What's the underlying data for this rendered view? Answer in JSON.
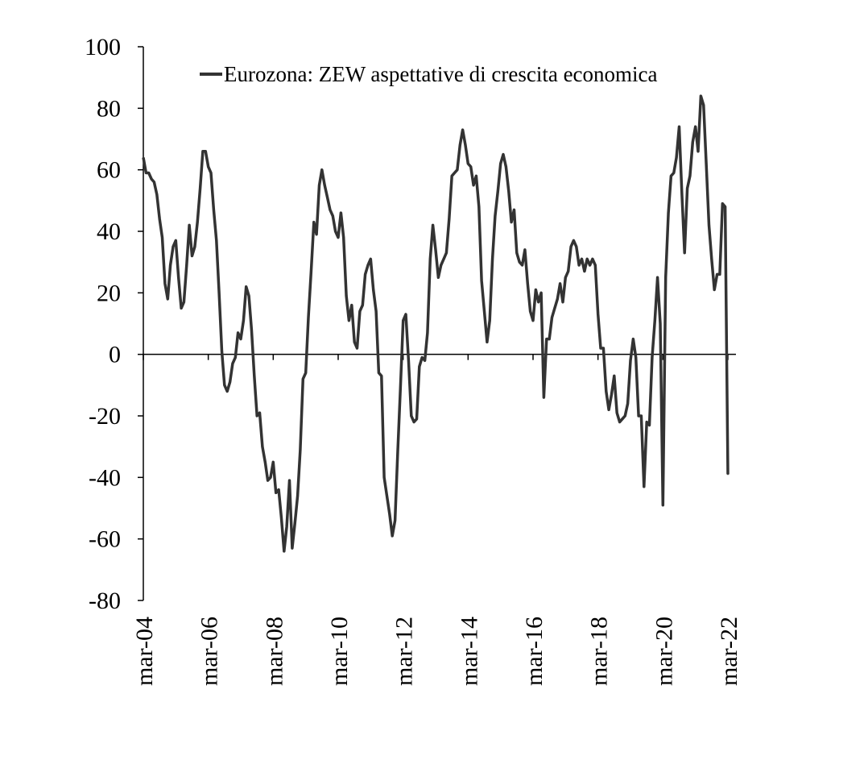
{
  "chart_data": {
    "type": "line",
    "title": "",
    "xlabel": "",
    "ylabel": "",
    "ylim": [
      -80,
      100
    ],
    "y_ticks": [
      -80,
      -60,
      -40,
      -20,
      0,
      20,
      40,
      60,
      80,
      100
    ],
    "x_range": [
      "2004-03",
      "2022-03"
    ],
    "x_tick_labels": [
      "mar-04",
      "mar-06",
      "mar-08",
      "mar-10",
      "mar-12",
      "mar-14",
      "mar-16",
      "mar-18",
      "mar-20",
      "mar-22"
    ],
    "grid": false,
    "legend_position": "top",
    "colors": {
      "series": "#333333"
    },
    "series": [
      {
        "name": "Eurozona: ZEW aspettative di crescita economica",
        "points": [
          [
            "2004-03",
            64
          ],
          [
            "2004-04",
            59
          ],
          [
            "2004-05",
            59
          ],
          [
            "2004-06",
            57
          ],
          [
            "2004-07",
            56
          ],
          [
            "2004-08",
            52
          ],
          [
            "2004-09",
            44
          ],
          [
            "2004-10",
            38
          ],
          [
            "2004-11",
            23
          ],
          [
            "2004-12",
            18
          ],
          [
            "2005-01",
            29
          ],
          [
            "2005-02",
            35
          ],
          [
            "2005-03",
            37
          ],
          [
            "2005-04",
            25
          ],
          [
            "2005-05",
            15
          ],
          [
            "2005-06",
            17
          ],
          [
            "2005-07",
            29
          ],
          [
            "2005-08",
            42
          ],
          [
            "2005-09",
            32
          ],
          [
            "2005-10",
            35
          ],
          [
            "2005-11",
            43
          ],
          [
            "2005-12",
            54
          ],
          [
            "2006-01",
            66
          ],
          [
            "2006-02",
            66
          ],
          [
            "2006-03",
            61
          ],
          [
            "2006-04",
            59
          ],
          [
            "2006-05",
            47
          ],
          [
            "2006-06",
            37
          ],
          [
            "2006-07",
            20
          ],
          [
            "2006-08",
            1
          ],
          [
            "2006-09",
            -10
          ],
          [
            "2006-10",
            -12
          ],
          [
            "2006-11",
            -9
          ],
          [
            "2006-12",
            -3
          ],
          [
            "2007-01",
            -1
          ],
          [
            "2007-02",
            7
          ],
          [
            "2007-03",
            5
          ],
          [
            "2007-04",
            11
          ],
          [
            "2007-05",
            22
          ],
          [
            "2007-06",
            19
          ],
          [
            "2007-07",
            8
          ],
          [
            "2007-08",
            -7
          ],
          [
            "2007-09",
            -20
          ],
          [
            "2007-10",
            -19
          ],
          [
            "2007-11",
            -30
          ],
          [
            "2007-12",
            -35
          ],
          [
            "2008-01",
            -41
          ],
          [
            "2008-02",
            -40
          ],
          [
            "2008-03",
            -35
          ],
          [
            "2008-04",
            -45
          ],
          [
            "2008-05",
            -44
          ],
          [
            "2008-06",
            -53
          ],
          [
            "2008-07",
            -64
          ],
          [
            "2008-08",
            -56
          ],
          [
            "2008-09",
            -41
          ],
          [
            "2008-10",
            -63
          ],
          [
            "2008-11",
            -55
          ],
          [
            "2008-12",
            -46
          ],
          [
            "2009-01",
            -31
          ],
          [
            "2009-02",
            -8
          ],
          [
            "2009-03",
            -6
          ],
          [
            "2009-04",
            12
          ],
          [
            "2009-05",
            27
          ],
          [
            "2009-06",
            43
          ],
          [
            "2009-07",
            39
          ],
          [
            "2009-08",
            55
          ],
          [
            "2009-09",
            60
          ],
          [
            "2009-10",
            55
          ],
          [
            "2009-11",
            51
          ],
          [
            "2009-12",
            47
          ],
          [
            "2010-01",
            45
          ],
          [
            "2010-02",
            40
          ],
          [
            "2010-03",
            38
          ],
          [
            "2010-04",
            46
          ],
          [
            "2010-05",
            38
          ],
          [
            "2010-06",
            19
          ],
          [
            "2010-07",
            11
          ],
          [
            "2010-08",
            16
          ],
          [
            "2010-09",
            4
          ],
          [
            "2010-10",
            2
          ],
          [
            "2010-11",
            14
          ],
          [
            "2010-12",
            16
          ],
          [
            "2011-01",
            26
          ],
          [
            "2011-02",
            29
          ],
          [
            "2011-03",
            31
          ],
          [
            "2011-04",
            21
          ],
          [
            "2011-05",
            14
          ],
          [
            "2011-06",
            -6
          ],
          [
            "2011-07",
            -7
          ],
          [
            "2011-08",
            -40
          ],
          [
            "2011-09",
            -46
          ],
          [
            "2011-10",
            -52
          ],
          [
            "2011-11",
            -59
          ],
          [
            "2011-12",
            -54
          ],
          [
            "2012-01",
            -32
          ],
          [
            "2012-02",
            -11
          ],
          [
            "2012-03",
            11
          ],
          [
            "2012-04",
            13
          ],
          [
            "2012-05",
            -2
          ],
          [
            "2012-06",
            -20
          ],
          [
            "2012-07",
            -22
          ],
          [
            "2012-08",
            -21
          ],
          [
            "2012-09",
            -4
          ],
          [
            "2012-10",
            -1
          ],
          [
            "2012-11",
            -2
          ],
          [
            "2012-12",
            7
          ],
          [
            "2013-01",
            31
          ],
          [
            "2013-02",
            42
          ],
          [
            "2013-03",
            34
          ],
          [
            "2013-04",
            25
          ],
          [
            "2013-05",
            29
          ],
          [
            "2013-06",
            31
          ],
          [
            "2013-07",
            33
          ],
          [
            "2013-08",
            44
          ],
          [
            "2013-09",
            58
          ],
          [
            "2013-10",
            59
          ],
          [
            "2013-11",
            60
          ],
          [
            "2013-12",
            68
          ],
          [
            "2014-01",
            73
          ],
          [
            "2014-02",
            68
          ],
          [
            "2014-03",
            62
          ],
          [
            "2014-04",
            61
          ],
          [
            "2014-05",
            55
          ],
          [
            "2014-06",
            58
          ],
          [
            "2014-07",
            48
          ],
          [
            "2014-08",
            24
          ],
          [
            "2014-09",
            14
          ],
          [
            "2014-10",
            4
          ],
          [
            "2014-11",
            11
          ],
          [
            "2014-12",
            31
          ],
          [
            "2015-01",
            45
          ],
          [
            "2015-02",
            53
          ],
          [
            "2015-03",
            62
          ],
          [
            "2015-04",
            65
          ],
          [
            "2015-05",
            61
          ],
          [
            "2015-06",
            53
          ],
          [
            "2015-07",
            43
          ],
          [
            "2015-08",
            47
          ],
          [
            "2015-09",
            33
          ],
          [
            "2015-10",
            30
          ],
          [
            "2015-11",
            29
          ],
          [
            "2015-12",
            34
          ],
          [
            "2016-01",
            23
          ],
          [
            "2016-02",
            14
          ],
          [
            "2016-03",
            11
          ],
          [
            "2016-04",
            21
          ],
          [
            "2016-05",
            17
          ],
          [
            "2016-06",
            20
          ],
          [
            "2016-07",
            -14
          ],
          [
            "2016-08",
            5
          ],
          [
            "2016-09",
            5
          ],
          [
            "2016-10",
            12
          ],
          [
            "2016-11",
            15
          ],
          [
            "2016-12",
            18
          ],
          [
            "2017-01",
            23
          ],
          [
            "2017-02",
            17
          ],
          [
            "2017-03",
            25
          ],
          [
            "2017-04",
            27
          ],
          [
            "2017-05",
            35
          ],
          [
            "2017-06",
            37
          ],
          [
            "2017-07",
            35
          ],
          [
            "2017-08",
            29
          ],
          [
            "2017-09",
            31
          ],
          [
            "2017-10",
            27
          ],
          [
            "2017-11",
            31
          ],
          [
            "2017-12",
            29
          ],
          [
            "2018-01",
            31
          ],
          [
            "2018-02",
            29
          ],
          [
            "2018-03",
            13
          ],
          [
            "2018-04",
            2
          ],
          [
            "2018-05",
            2
          ],
          [
            "2018-06",
            -12
          ],
          [
            "2018-07",
            -18
          ],
          [
            "2018-08",
            -13
          ],
          [
            "2018-09",
            -7
          ],
          [
            "2018-10",
            -19
          ],
          [
            "2018-11",
            -22
          ],
          [
            "2018-12",
            -21
          ],
          [
            "2019-01",
            -20
          ],
          [
            "2019-02",
            -16
          ],
          [
            "2019-03",
            -2
          ],
          [
            "2019-04",
            5
          ],
          [
            "2019-05",
            -1
          ],
          [
            "2019-06",
            -20
          ],
          [
            "2019-07",
            -20
          ],
          [
            "2019-08",
            -43
          ],
          [
            "2019-09",
            -22
          ],
          [
            "2019-10",
            -23
          ],
          [
            "2019-11",
            -1
          ],
          [
            "2019-12",
            11
          ],
          [
            "2020-01",
            25
          ],
          [
            "2020-02",
            10
          ],
          [
            "2020-03",
            -49
          ],
          [
            "2020-04",
            25
          ],
          [
            "2020-05",
            46
          ],
          [
            "2020-06",
            58
          ],
          [
            "2020-07",
            59
          ],
          [
            "2020-08",
            64
          ],
          [
            "2020-09",
            74
          ],
          [
            "2020-10",
            52
          ],
          [
            "2020-11",
            33
          ],
          [
            "2020-12",
            54
          ],
          [
            "2021-01",
            58
          ],
          [
            "2021-02",
            69
          ],
          [
            "2021-03",
            74
          ],
          [
            "2021-04",
            66
          ],
          [
            "2021-05",
            84
          ],
          [
            "2021-06",
            81
          ],
          [
            "2021-07",
            62
          ],
          [
            "2021-08",
            42
          ],
          [
            "2021-09",
            31
          ],
          [
            "2021-10",
            21
          ],
          [
            "2021-11",
            26
          ],
          [
            "2021-12",
            26
          ],
          [
            "2022-01",
            49
          ],
          [
            "2022-02",
            48
          ],
          [
            "2022-03",
            -39
          ]
        ]
      }
    ]
  }
}
